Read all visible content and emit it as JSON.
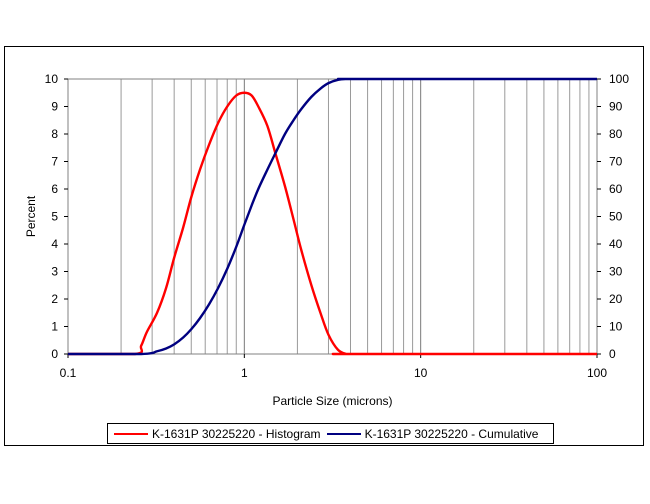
{
  "chart_data": {
    "type": "line",
    "title": "",
    "xlabel": "Particle Size (microns)",
    "ylabel": "Percent",
    "x_scale": "log",
    "xlim": [
      0.1,
      100
    ],
    "ylim_left": [
      0,
      10
    ],
    "ylim_right": [
      0,
      100
    ],
    "x_ticks": [
      "0.1",
      "1",
      "10",
      "100"
    ],
    "y_ticks_left": [
      "0",
      "1",
      "2",
      "3",
      "4",
      "5",
      "6",
      "7",
      "8",
      "9",
      "10"
    ],
    "y_ticks_right": [
      "0",
      "10",
      "20",
      "30",
      "40",
      "50",
      "60",
      "70",
      "80",
      "90",
      "100"
    ],
    "grid": "vertical log minor and major gridlines",
    "legend_position": "bottom",
    "series": [
      {
        "name": "K-1631P 30225220 - Histogram",
        "axis": "left",
        "color": "#ff0000",
        "x": [
          0.1,
          0.24,
          0.26,
          0.28,
          0.32,
          0.36,
          0.4,
          0.45,
          0.5,
          0.56,
          0.63,
          0.71,
          0.8,
          0.9,
          1.0,
          1.1,
          1.2,
          1.35,
          1.5,
          1.7,
          1.9,
          2.1,
          2.4,
          2.7,
          3.0,
          3.4,
          3.8,
          4.1,
          100
        ],
        "values": [
          0,
          0,
          0.3,
          0.8,
          1.5,
          2.4,
          3.5,
          4.6,
          5.7,
          6.7,
          7.6,
          8.4,
          9.0,
          9.4,
          9.5,
          9.4,
          9.0,
          8.3,
          7.3,
          6.1,
          4.9,
          3.8,
          2.5,
          1.5,
          0.7,
          0.15,
          0,
          0,
          0
        ]
      },
      {
        "name": "K-1631P 30225220 - Cumulative",
        "axis": "right",
        "color": "#000080",
        "x": [
          0.1,
          0.26,
          0.32,
          0.36,
          0.4,
          0.45,
          0.5,
          0.56,
          0.63,
          0.71,
          0.8,
          0.9,
          1.0,
          1.1,
          1.2,
          1.35,
          1.5,
          1.7,
          1.9,
          2.1,
          2.4,
          2.7,
          3.0,
          3.4,
          3.8,
          4.5,
          100
        ],
        "values": [
          0,
          0,
          1,
          2,
          3.5,
          6,
          9,
          13,
          18,
          24,
          31,
          39,
          47,
          54,
          60,
          67,
          73,
          80,
          85,
          89,
          93.5,
          96.5,
          98.5,
          99.7,
          100,
          100,
          100
        ]
      }
    ]
  }
}
